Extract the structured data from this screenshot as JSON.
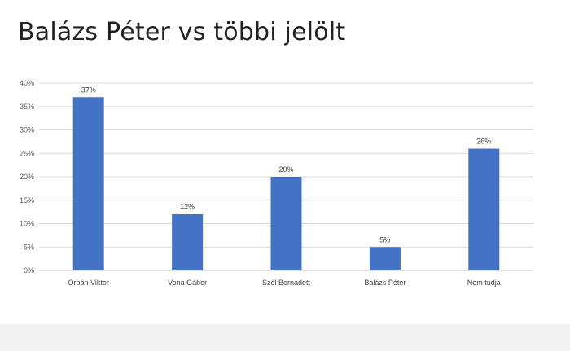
{
  "slide": {
    "title": "Balázs Péter vs többi jelölt"
  },
  "chart_data": {
    "type": "bar",
    "title": "",
    "xlabel": "",
    "ylabel": "",
    "categories": [
      "Orbán Viktor",
      "Vona Gábor",
      "Szél Bernadett",
      "Balázs Péter",
      "Nem tudja"
    ],
    "values": [
      37,
      12,
      20,
      5,
      26
    ],
    "data_labels": [
      "37%",
      "12%",
      "20%",
      "5%",
      "26%"
    ],
    "ylim": [
      0,
      40
    ],
    "y_ticks": [
      0,
      5,
      10,
      15,
      20,
      25,
      30,
      35,
      40
    ],
    "y_tick_labels": [
      "0%",
      "5%",
      "10%",
      "15%",
      "20%",
      "25%",
      "30%",
      "35%",
      "40%"
    ],
    "grid": true,
    "legend": "none",
    "colors": {
      "bar": "#4472C4",
      "grid": "#d9d9d9",
      "axis": "#bfbfbf"
    }
  }
}
